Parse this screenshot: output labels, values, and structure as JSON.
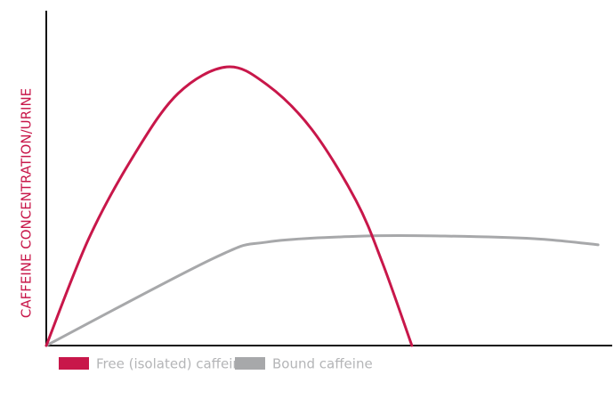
{
  "chart_data": {
    "type": "line",
    "y_label": "CAFFEINE CONCENTRATION/URINE",
    "xlim": [
      0,
      100
    ],
    "ylim": [
      0,
      100
    ],
    "series": [
      {
        "name": "Free (isolated) caffeine",
        "color": "#c8174a",
        "x": [
          0,
          7.5,
          15.4,
          23.3,
          31.9,
          39.0,
          46.9,
          54.7,
          59.4,
          64.6
        ],
        "values": [
          0,
          31.9,
          56.6,
          75.3,
          83.2,
          77.9,
          64.6,
          43.4,
          24.7,
          0
        ]
      },
      {
        "name": "Bound caffeine",
        "color": "#a7a8aa",
        "x": [
          0,
          29.6,
          39.0,
          56.3,
          70.4,
          86.2,
          97.5
        ],
        "values": [
          0,
          26.1,
          30.9,
          32.7,
          32.7,
          31.9,
          30.1
        ]
      }
    ]
  }
}
